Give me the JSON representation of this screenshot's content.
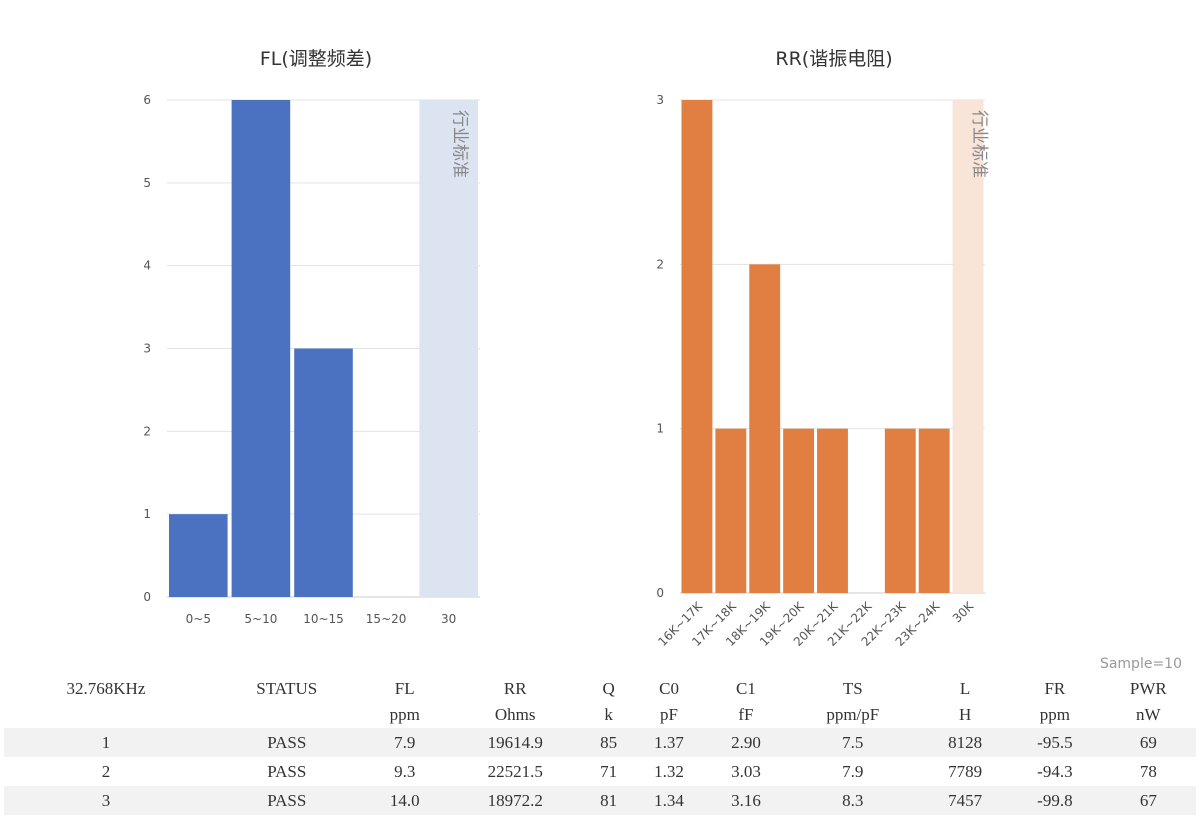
{
  "chart_data": [
    {
      "type": "bar",
      "title": "FL(调整频差)",
      "categories": [
        "0~5",
        "5~10",
        "10~15",
        "15~20",
        "30"
      ],
      "values": [
        1,
        6,
        3,
        0,
        null
      ],
      "ylim": [
        0,
        6
      ],
      "yticks": [
        0,
        1,
        2,
        3,
        4,
        5,
        6
      ],
      "band": {
        "category": "30",
        "label": "行业标准"
      },
      "bar_color": "#4a72c0",
      "band_color": "#dce3f1",
      "grid": true
    },
    {
      "type": "bar",
      "title": "RR(谐振电阻)",
      "categories": [
        "16K~17K",
        "17K~18K",
        "18K~19K",
        "19K~20K",
        "20K~21K",
        "21K~22K",
        "22K~23K",
        "23K~24K",
        "30K"
      ],
      "values": [
        3,
        1,
        2,
        1,
        1,
        0,
        1,
        1,
        null
      ],
      "ylim": [
        0,
        3
      ],
      "yticks": [
        0,
        1,
        2,
        3
      ],
      "band": {
        "category": "30K",
        "label": "行业标准"
      },
      "bar_color": "#e07f41",
      "band_color": "#f8e5d8",
      "grid": true
    }
  ],
  "sample_label": "Sample=10",
  "table": {
    "header1": [
      "32.768KHz",
      "STATUS",
      "FL",
      "RR",
      "Q",
      "C0",
      "C1",
      "TS",
      "L",
      "FR",
      "PWR"
    ],
    "header2": [
      "",
      "",
      "ppm",
      "Ohms",
      "k",
      "pF",
      "fF",
      "ppm/pF",
      "H",
      "ppm",
      "nW"
    ],
    "rows": [
      [
        "1",
        "PASS",
        "7.9",
        "19614.9",
        "85",
        "1.37",
        "2.90",
        "7.5",
        "8128",
        "-95.5",
        "69"
      ],
      [
        "2",
        "PASS",
        "9.3",
        "22521.5",
        "71",
        "1.32",
        "3.03",
        "7.9",
        "7789",
        "-94.3",
        "78"
      ],
      [
        "3",
        "PASS",
        "14.0",
        "18972.2",
        "81",
        "1.34",
        "3.16",
        "8.3",
        "7457",
        "-99.8",
        "67"
      ]
    ]
  }
}
